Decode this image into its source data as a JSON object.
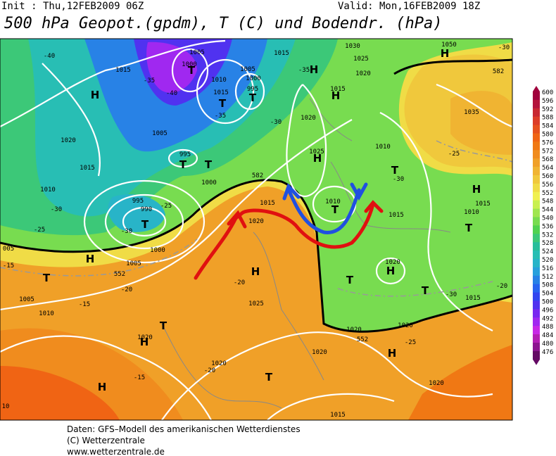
{
  "header": {
    "init": "Init : Thu,12FEB2009 06Z",
    "valid": "Valid: Mon,16FEB2009 18Z",
    "title": "500 hPa Geopot.(gpdm), T (C) und Bodendr. (hPa)"
  },
  "map": {
    "labels": [
      "1015",
      "1000",
      "1005",
      "1010",
      "1015",
      "1005",
      "1000",
      "995",
      "H",
      "T",
      "T",
      "T",
      "-40",
      "-35",
      "-40",
      "-35",
      "-30",
      "1005",
      "995",
      "T",
      "T",
      "1000",
      "1020",
      "1015",
      "1010",
      "-30",
      "-25",
      "995",
      "990",
      "T",
      "-30",
      "-25",
      "1000",
      "H",
      "1005",
      "552",
      "T",
      "1005",
      "1010",
      "-20",
      "-15",
      "1020",
      "1015",
      "582",
      "H",
      "-20",
      "1025",
      "1020",
      "H",
      "T",
      "H",
      "-15",
      "1020",
      "-20",
      "T",
      "1015",
      "1020",
      "552",
      "1020",
      "1020",
      "H",
      "1020",
      "1015",
      "H",
      "-35",
      "1030",
      "1025",
      "1020",
      "1015",
      "H",
      "1020",
      "1025",
      "H",
      "1010",
      "T",
      "-30",
      "1010",
      "T",
      "1015",
      "1035",
      "1050",
      "H",
      "-30",
      "582",
      "-25",
      "1015",
      "1010",
      "T",
      "H",
      "T",
      "-30",
      "1015",
      "H",
      "1020",
      "T",
      "-25",
      "-20",
      "10",
      "005",
      "-15"
    ]
  },
  "colorbar": {
    "levels": [
      600,
      596,
      592,
      588,
      584,
      580,
      576,
      572,
      568,
      564,
      560,
      556,
      552,
      548,
      544,
      540,
      536,
      532,
      528,
      524,
      520,
      516,
      512,
      508,
      504,
      500,
      496,
      492,
      488,
      484,
      480,
      476
    ],
    "colors": [
      "#a0003c",
      "#b4143c",
      "#c82832",
      "#dc3c28",
      "#e6501e",
      "#f06414",
      "#f07814",
      "#f08c1e",
      "#f0a028",
      "#f0b432",
      "#f0c83c",
      "#f0dc46",
      "#f0f050",
      "#c8f050",
      "#a0e650",
      "#78dc50",
      "#50d250",
      "#3cc878",
      "#28be9b",
      "#28beb4",
      "#28b4c8",
      "#28a0dc",
      "#2882e6",
      "#2864f0",
      "#3246f0",
      "#5032f0",
      "#7828f0",
      "#a028f0",
      "#c828e6",
      "#b41eb4",
      "#8c1490",
      "#640a64"
    ]
  },
  "footer": {
    "line1": "Daten: GFS–Modell des amerikanischen Wetterdienstes",
    "line2": "(C) Wetterzentrale",
    "line3": "www.wetterzentrale.de"
  }
}
